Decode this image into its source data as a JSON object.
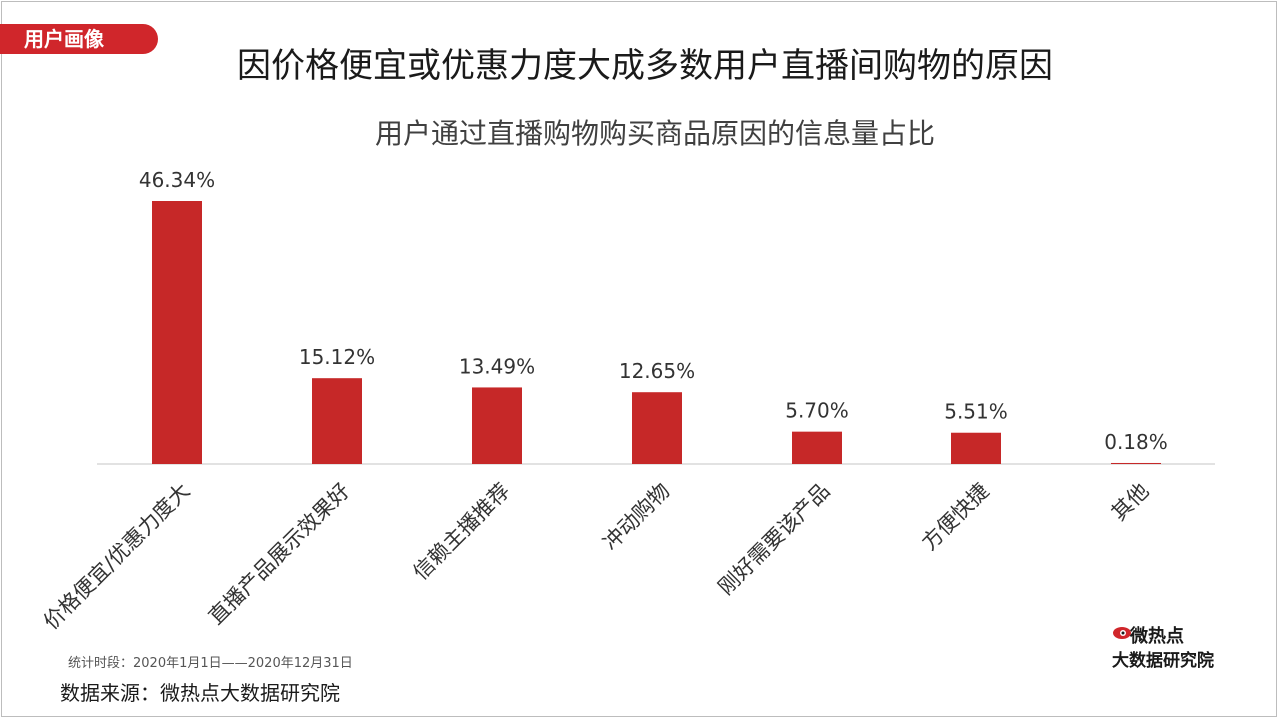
{
  "header": {
    "tag_label": "用户画像",
    "main_title": "因价格便宜或优惠力度大成多数用户直播间购物的原因"
  },
  "chart_data": {
    "type": "bar",
    "title": "用户通过直播购物购买商品原因的信息量占比",
    "categories": [
      "价格便宜/优惠力度大",
      "直播产品展示效果好",
      "信赖主播推荐",
      "冲动购物",
      "刚好需要该产品",
      "方便快捷",
      "其他"
    ],
    "values": [
      46.34,
      15.12,
      13.49,
      12.65,
      5.7,
      5.51,
      0.18
    ],
    "value_labels": [
      "46.34%",
      "15.12%",
      "13.49%",
      "12.65%",
      "5.70%",
      "5.51%",
      "0.18%"
    ],
    "ylim": [
      0,
      46.34
    ],
    "bar_color": "#c62828",
    "axis_color": "#d9d9d9",
    "grid": false
  },
  "footer": {
    "stat_time": "统计时段：2020年1月1日——2020年12月31日",
    "source": "数据来源：微热点大数据研究院",
    "logo_top": "微热点",
    "logo_bottom": "大数据研究院"
  }
}
